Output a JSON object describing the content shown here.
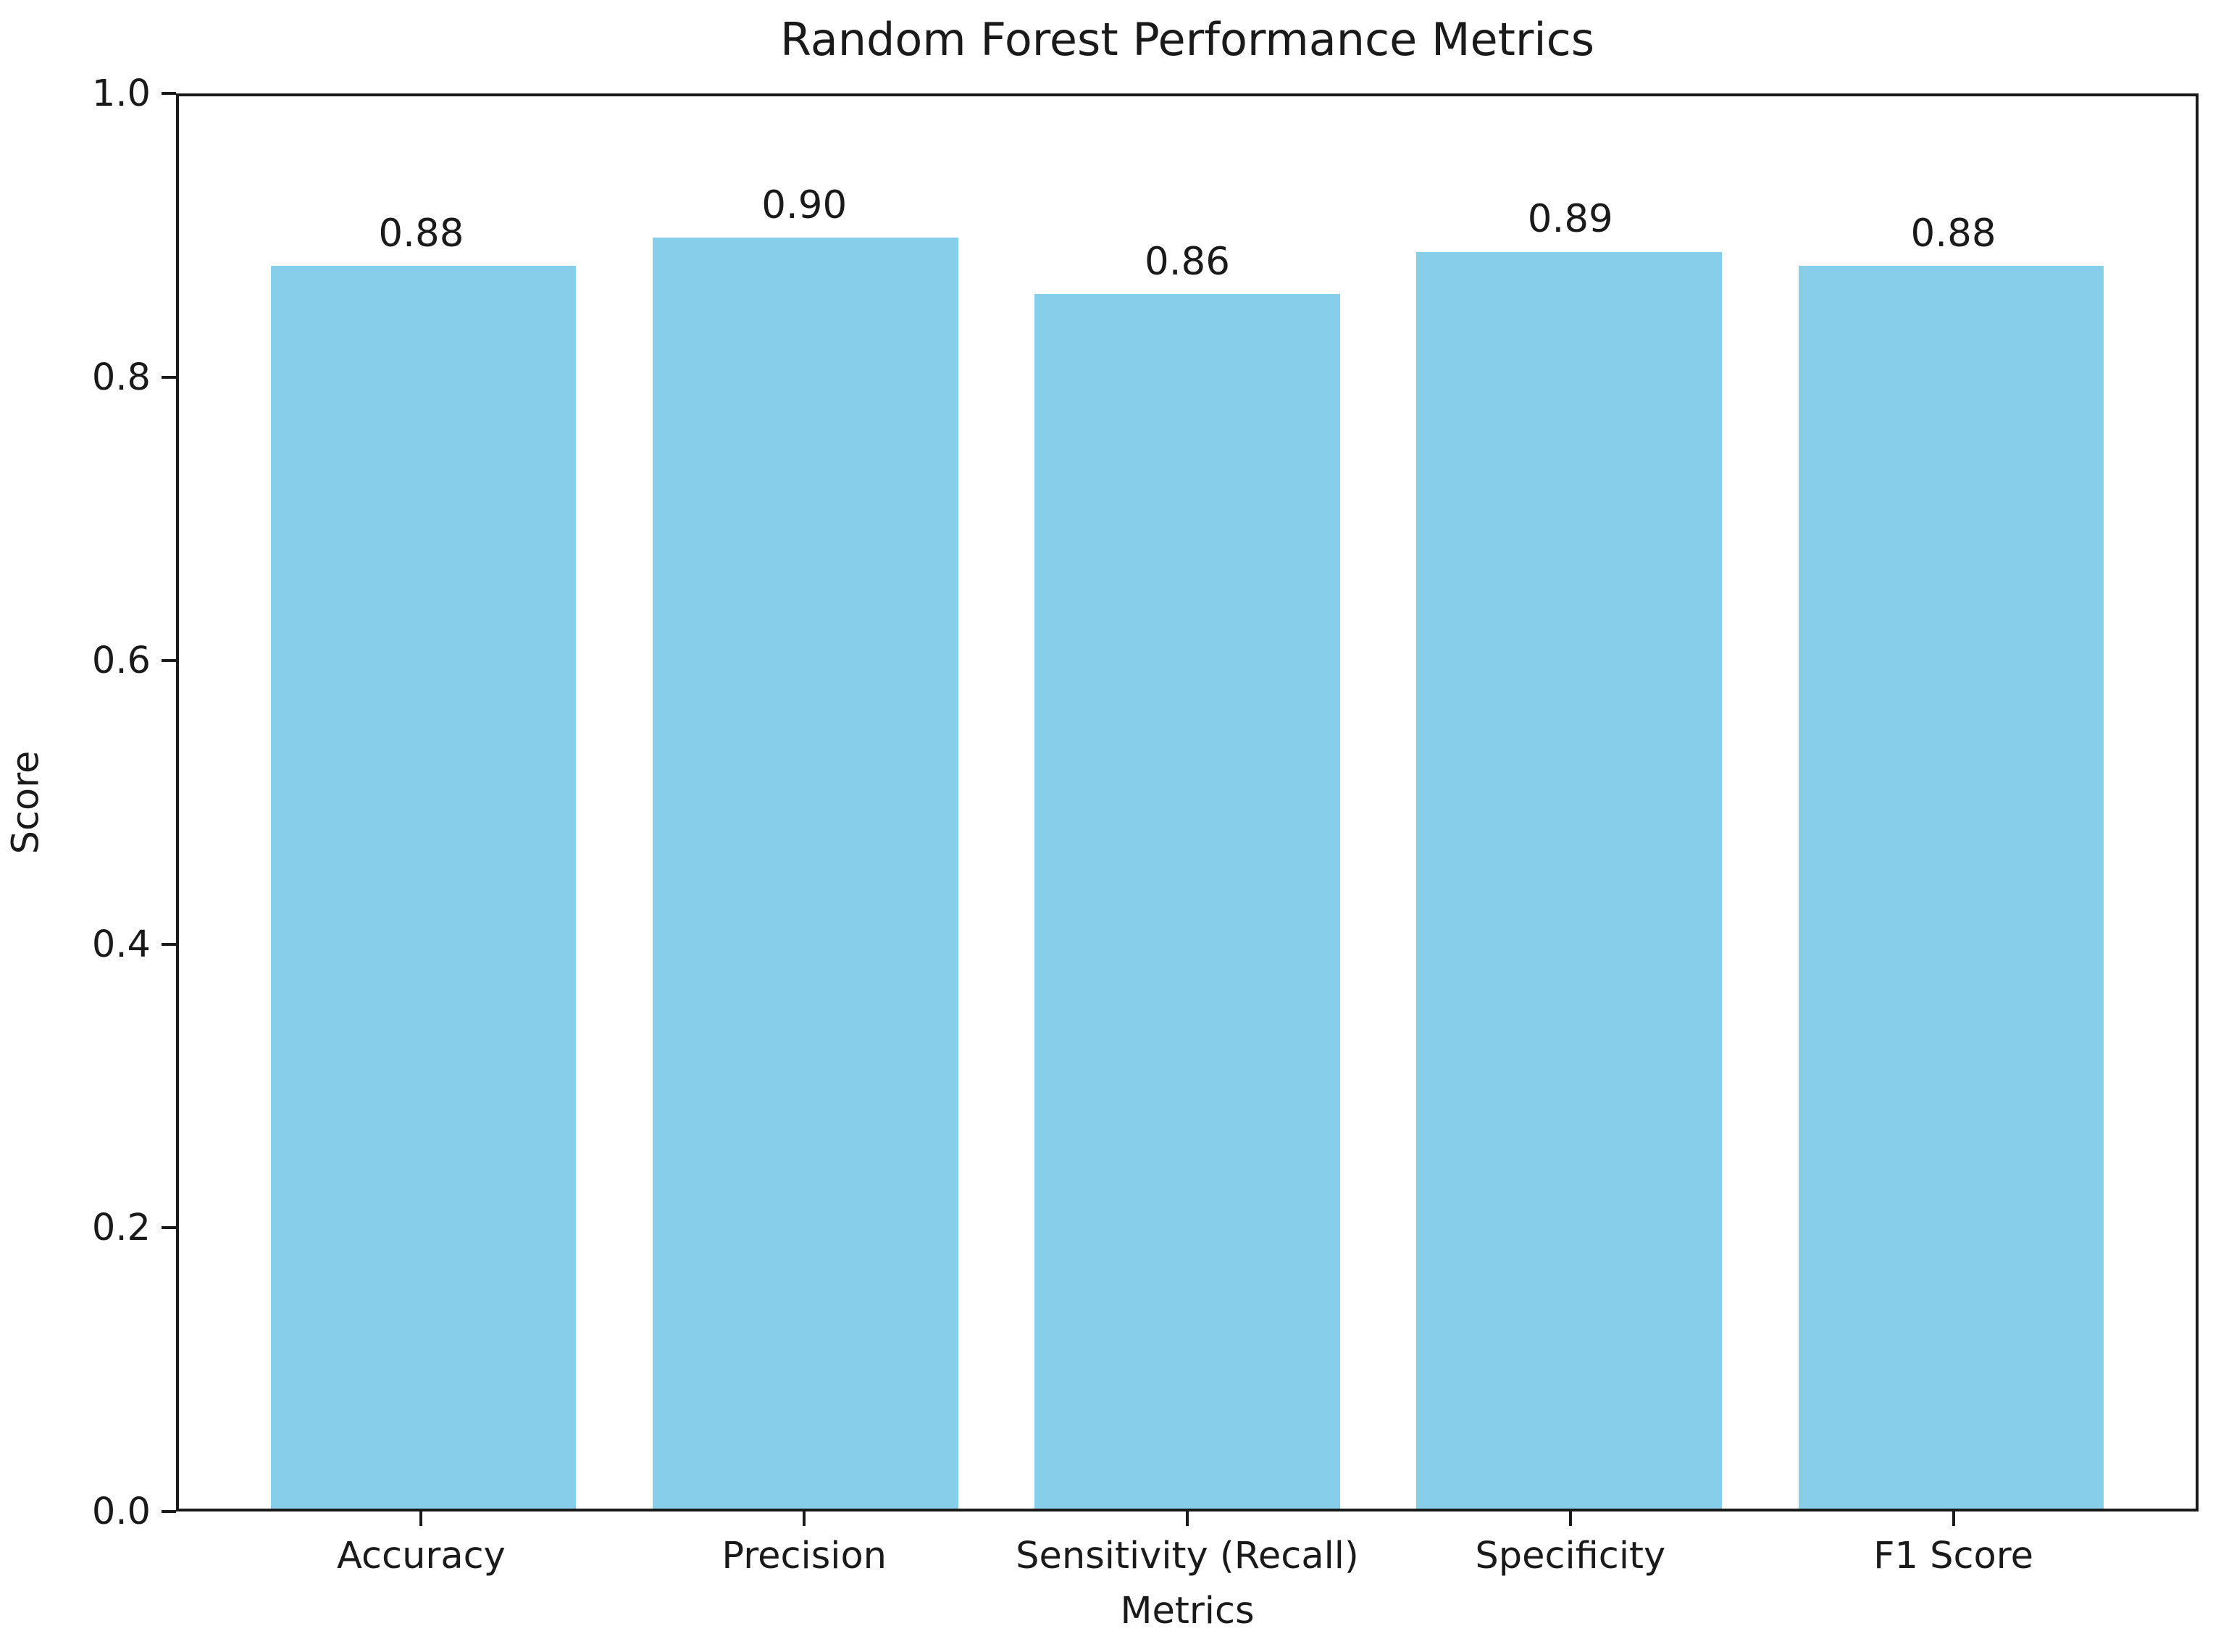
{
  "chart_data": {
    "type": "bar",
    "title": "Random Forest Performance Metrics",
    "xlabel": "Metrics",
    "ylabel": "Score",
    "categories": [
      "Accuracy",
      "Precision",
      "Sensitivity (Recall)",
      "Specificity",
      "F1 Score"
    ],
    "values": [
      0.88,
      0.9,
      0.86,
      0.89,
      0.88
    ],
    "value_labels": [
      "0.88",
      "0.90",
      "0.86",
      "0.89",
      "0.88"
    ],
    "yticks": [
      "0.0",
      "0.2",
      "0.4",
      "0.6",
      "0.8",
      "1.0"
    ],
    "ylim": [
      0.0,
      1.0
    ],
    "bar_color": "#87CEEB",
    "axis_color": "#1a1a1a",
    "text_color": "#1a1a1a",
    "background_color": "#ffffff",
    "grid": "off",
    "legend": "none"
  }
}
